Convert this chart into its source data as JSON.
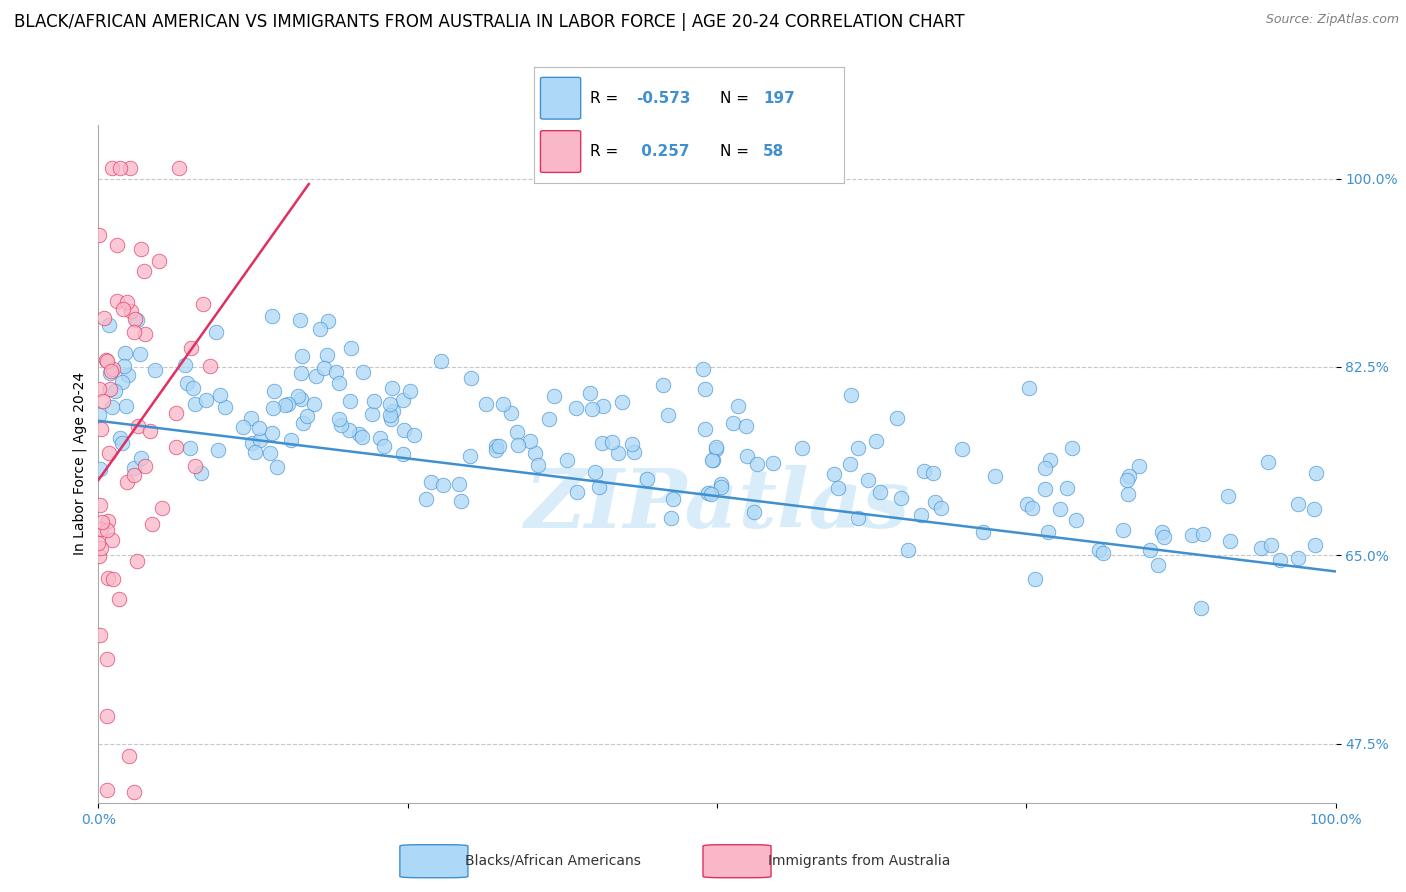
{
  "title": "BLACK/AFRICAN AMERICAN VS IMMIGRANTS FROM AUSTRALIA IN LABOR FORCE | AGE 20-24 CORRELATION CHART",
  "source": "Source: ZipAtlas.com",
  "ylabel": "In Labor Force | Age 20-24",
  "xlim": [
    0,
    1
  ],
  "ylim": [
    0.42,
    1.05
  ],
  "yticks": [
    0.475,
    0.65,
    0.825,
    1.0
  ],
  "ytick_labels": [
    "47.5%",
    "65.0%",
    "82.5%",
    "100.0%"
  ],
  "blue_R": -0.573,
  "blue_N": 197,
  "pink_R": 0.257,
  "pink_N": 58,
  "blue_color": "#add8f7",
  "pink_color": "#f9b8c8",
  "blue_line_color": "#4090d0",
  "pink_line_color": "#e03060",
  "legend_label_blue": "Blacks/African Americans",
  "legend_label_pink": "Immigrants from Australia",
  "watermark_text": "ZIPatlas",
  "grid_color": "#c8c8c8",
  "background_color": "#ffffff",
  "title_fontsize": 12,
  "source_fontsize": 9,
  "axis_fontsize": 10,
  "tick_fontsize": 10,
  "blue_trend_x0": 0.0,
  "blue_trend_x1": 1.0,
  "blue_trend_y0": 0.775,
  "blue_trend_y1": 0.635,
  "pink_trend_x0": 0.0,
  "pink_trend_x1": 0.17,
  "pink_trend_y0": 0.72,
  "pink_trend_y1": 0.995,
  "blue_seed": 7,
  "pink_seed": 13
}
